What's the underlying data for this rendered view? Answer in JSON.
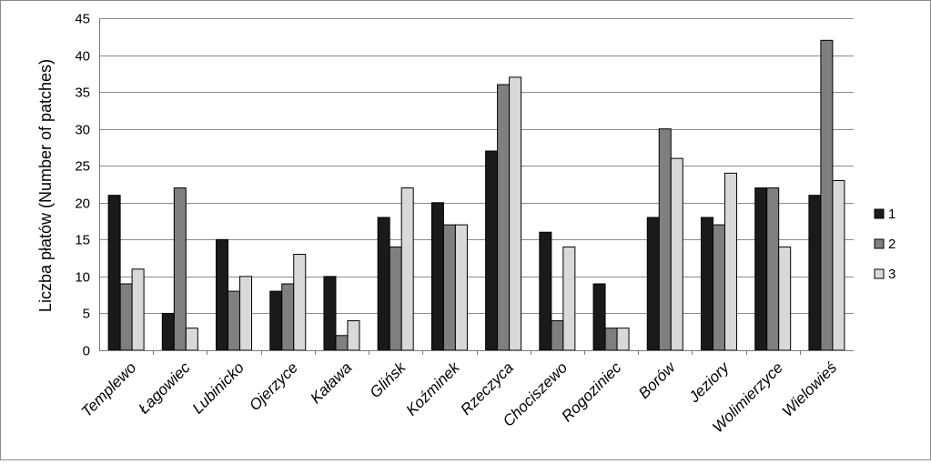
{
  "chart_data": {
    "type": "bar",
    "categories": [
      "Templewo",
      "Łagowiec",
      "Lubinicko",
      "Ojerzyce",
      "Kaława",
      "Glińsk",
      "Koźminek",
      "Rzeczyca",
      "Chociszewo",
      "Rogoziniec",
      "Borów",
      "Jeziory",
      "Wolimierzyce",
      "Wielowieś"
    ],
    "series": [
      {
        "name": "1",
        "color": "#1a1a1a",
        "values": [
          21,
          5,
          15,
          8,
          10,
          18,
          20,
          27,
          16,
          9,
          18,
          18,
          22,
          21
        ]
      },
      {
        "name": "2",
        "color": "#7f7f7f",
        "values": [
          9,
          22,
          8,
          9,
          2,
          14,
          17,
          36,
          4,
          3,
          30,
          17,
          22,
          42
        ]
      },
      {
        "name": "3",
        "color": "#d9d9d9",
        "values": [
          11,
          3,
          10,
          13,
          4,
          22,
          17,
          37,
          14,
          3,
          26,
          24,
          14,
          23
        ]
      }
    ],
    "ylabel": "Liczba płatów (Number of patches)",
    "xlabel": "",
    "ylim": [
      0,
      45
    ],
    "yticks": [
      0,
      5,
      10,
      15,
      20,
      25,
      30,
      35,
      40,
      45
    ],
    "grid": true,
    "legend": "right"
  }
}
